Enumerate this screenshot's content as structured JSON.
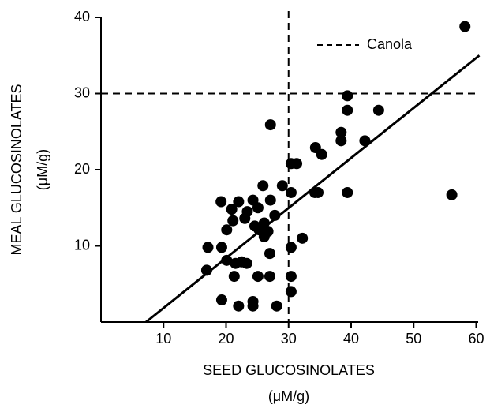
{
  "chart_data": {
    "type": "scatter",
    "xlabel": "SEED GLUCOSINOLATES",
    "xlabel_unit": "(μM/g)",
    "ylabel": "MEAL GLUCOSINOLATES",
    "ylabel_unit": "(μM/g)",
    "xlim": [
      0,
      60
    ],
    "ylim": [
      0,
      40
    ],
    "xticks": [
      10,
      20,
      30,
      40,
      50,
      60
    ],
    "yticks": [
      10,
      20,
      30,
      40
    ],
    "color": "#000000",
    "series": [
      {
        "x": [
          58.2,
          39.4,
          39.4,
          44.4,
          38.4,
          38.4,
          42.2,
          34.3,
          35.3,
          27.1,
          30.4,
          31.3,
          34.2,
          34.7,
          39.4,
          56.1,
          25.9,
          29.0,
          30.4,
          19.2,
          22.0,
          24.3,
          27.1,
          20.9,
          23.4,
          25.1,
          27.8,
          21.1,
          23.0,
          24.6,
          26.1,
          26.7,
          26.1,
          25.3,
          20.1,
          32.2,
          17.1,
          19.3,
          30.4,
          27.0,
          20.1,
          22.5,
          21.5,
          23.3,
          16.9,
          21.3,
          25.1,
          27.0,
          30.4,
          30.4,
          19.3,
          22.0,
          24.3,
          24.3,
          28.1
        ],
        "values": [
          38.8,
          29.7,
          27.8,
          27.8,
          24.9,
          23.8,
          23.8,
          22.9,
          22.0,
          25.9,
          20.8,
          20.8,
          17.0,
          17.0,
          17.0,
          16.7,
          17.9,
          17.9,
          17.0,
          15.8,
          15.8,
          16.0,
          16.0,
          14.8,
          14.5,
          15.0,
          14.0,
          13.3,
          13.6,
          12.6,
          13.0,
          11.9,
          11.2,
          12.1,
          12.1,
          11.0,
          9.8,
          9.8,
          9.8,
          9.0,
          8.1,
          7.9,
          7.7,
          7.7,
          6.8,
          6.0,
          6.0,
          6.0,
          6.0,
          4.0,
          2.9,
          2.1,
          2.7,
          2.1,
          2.1
        ]
      }
    ],
    "fit_line": {
      "x": [
        7.2,
        60.5
      ],
      "values": [
        0,
        35
      ]
    },
    "reference": {
      "label": "Canola",
      "x": 30,
      "y": 30
    }
  }
}
